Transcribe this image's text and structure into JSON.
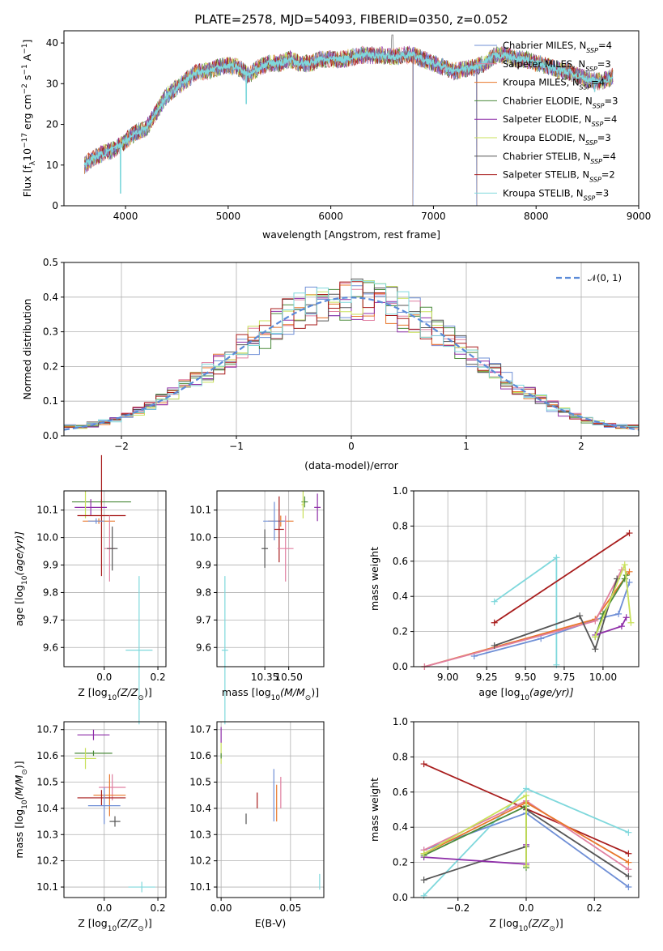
{
  "palette": {
    "chabrier_miles": "#6f8fd6",
    "salpeter_miles": "#e07fa0",
    "kroupa_miles": "#e8762a",
    "chabrier_elodie": "#4a8a3a",
    "salpeter_elodie": "#8e2ea8",
    "kroupa_elodie": "#c8e05a",
    "chabrier_stelib": "#555555",
    "salpeter_stelib": "#a81c1c",
    "kroupa_stelib": "#7fd8dc",
    "normal_curve": "#5b8bd8"
  },
  "chart_data": [
    {
      "id": "spectrum",
      "type": "line",
      "title": "PLATE=2578, MJD=54093, FIBERID=0350, z=0.052",
      "xlabel": "wavelength [Angstrom, rest frame]",
      "ylabel": "Flux [f",
      "ylabel_parts": [
        "Flux [f",
        "λ",
        "10",
        "−17",
        " erg cm",
        "−2",
        " s",
        "−1",
        " A",
        "−1",
        "]"
      ],
      "xlim": [
        3400,
        9000
      ],
      "ylim": [
        0,
        43
      ],
      "xticks": [
        "4000",
        "5000",
        "6000",
        "7000",
        "8000",
        "9000"
      ],
      "yticks": [
        "0",
        "10",
        "20",
        "30",
        "40"
      ],
      "legend_position": "top-right",
      "legend": [
        {
          "model": "Chabrier MILES, N",
          "sub": "SSP",
          "count": "=4"
        },
        {
          "model": "Salpeter MILES, N",
          "sub": "SSP",
          "count": "=3"
        },
        {
          "model": "Kroupa MILES, N",
          "sub": "SSP",
          "count": "=4"
        },
        {
          "model": "Chabrier ELODIE, N",
          "sub": "SSP",
          "count": "=3"
        },
        {
          "model": "Salpeter ELODIE, N",
          "sub": "SSP",
          "count": "=4"
        },
        {
          "model": "Kroupa ELODIE, N",
          "sub": "SSP",
          "count": "=3"
        },
        {
          "model": "Chabrier STELIB, N",
          "sub": "SSP",
          "count": "=4"
        },
        {
          "model": "Salpeter STELIB, N",
          "sub": "SSP",
          "count": "=2"
        },
        {
          "model": "Kroupa STELIB, N",
          "sub": "SSP",
          "count": "=3"
        }
      ],
      "continuum_x": [
        3600,
        3700,
        3800,
        3900,
        4000,
        4100,
        4200,
        4300,
        4400,
        4500,
        4600,
        4700,
        4800,
        4900,
        5000,
        5100,
        5200,
        5300,
        5400,
        5500,
        5600,
        5700,
        5800,
        5900,
        6000,
        6100,
        6200,
        6300,
        6400,
        6500,
        6600,
        6700,
        6800,
        6900,
        7000,
        7100,
        7200,
        7300,
        7400,
        7500,
        7600,
        7700,
        7800,
        7900,
        8000,
        8100,
        8200,
        8300,
        8400,
        8500,
        8600,
        8700,
        8750
      ],
      "continuum_y": [
        10,
        12,
        13,
        14,
        16,
        18,
        19,
        23,
        27,
        29,
        31,
        33,
        33,
        34,
        34.5,
        34,
        32,
        34,
        35,
        35,
        36,
        35,
        35,
        36,
        36,
        36,
        36.5,
        37,
        37,
        37,
        36.5,
        37,
        37,
        36,
        35,
        34,
        33,
        33.5,
        34,
        35,
        37,
        37,
        36,
        36,
        35,
        34.5,
        33.5,
        33,
        32,
        31,
        30.5,
        31,
        32
      ],
      "dips": [
        [
          3950,
          3
        ],
        [
          5175,
          25
        ],
        [
          6800,
          0
        ],
        [
          7420,
          0
        ],
        [
          8570,
          28
        ]
      ]
    },
    {
      "id": "residuals",
      "type": "histogram",
      "xlabel": "(data-model)/error",
      "ylabel": "Normed distribution",
      "xlim": [
        -2.5,
        2.5
      ],
      "ylim": [
        0,
        0.5
      ],
      "xticks": [
        "−2",
        "−1",
        "0",
        "1",
        "2"
      ],
      "yticks": [
        "0.0",
        "0.1",
        "0.2",
        "0.3",
        "0.4",
        "0.5"
      ],
      "bin_width": 0.1,
      "legend_position": "top-right",
      "legend_label": "𝒩(0, 1)",
      "grid": true
    },
    {
      "id": "age_vs_z",
      "type": "errorbar",
      "xlabel": "Z [log",
      "xlabel_parts": [
        "Z [log",
        "10",
        "(Z/Z",
        "⊙",
        ")]"
      ],
      "ylabel": "age  [log",
      "ylabel_parts": [
        "age  [log",
        "10",
        "(age/yr)]"
      ],
      "xlim": [
        -0.15,
        0.23
      ],
      "ylim": [
        9.53,
        10.17
      ],
      "xticks": [
        {
          "v": 0.0,
          "t": "0.0"
        },
        {
          "v": 0.2,
          "t": "0.2"
        }
      ],
      "yticks": [
        {
          "v": 9.6,
          "t": "9.6"
        },
        {
          "v": 9.7,
          "t": "9.7"
        },
        {
          "v": 9.8,
          "t": "9.8"
        },
        {
          "v": 9.9,
          "t": "9.9"
        },
        {
          "v": 10.0,
          "t": "10.0"
        },
        {
          "v": 10.1,
          "t": "10.1"
        }
      ],
      "points": [
        {
          "c": "chabrier_elodie",
          "x": -0.01,
          "xe": 0.11,
          "y": 10.13,
          "ye": 0.01
        },
        {
          "c": "salpeter_elodie",
          "x": -0.05,
          "xe": 0.06,
          "y": 10.11,
          "ye": 0.03
        },
        {
          "c": "kroupa_elodie",
          "x": -0.07,
          "xe": 0.0,
          "y": 10.12,
          "ye": 0.05
        },
        {
          "c": "salpeter_stelib",
          "x": -0.01,
          "xe": 0.09,
          "y": 10.08,
          "ye": 0.22
        },
        {
          "c": "kroupa_miles",
          "x": -0.02,
          "xe": 0.06,
          "y": 10.06,
          "ye": 0.01
        },
        {
          "c": "chabrier_miles",
          "x": -0.03,
          "xe": 0.03,
          "y": 10.06,
          "ye": 0.01
        },
        {
          "c": "salpeter_miles",
          "x": 0.02,
          "xe": 0.02,
          "y": 9.96,
          "ye": 0.12
        },
        {
          "c": "chabrier_stelib",
          "x": 0.03,
          "xe": 0.02,
          "y": 9.96,
          "ye": 0.08
        },
        {
          "c": "kroupa_stelib",
          "x": 0.13,
          "xe": 0.05,
          "y": 9.59,
          "ye": 0.27
        }
      ]
    },
    {
      "id": "age_vs_mass",
      "type": "errorbar",
      "xlabel": "mass [log",
      "xlabel_parts": [
        "mass [log",
        "10",
        "(M/M",
        "⊙",
        ")]"
      ],
      "ylabel": "",
      "xlim": [
        10.05,
        10.72
      ],
      "ylim": [
        9.53,
        10.17
      ],
      "xticks": [
        {
          "v": 10.35,
          "t": "10.35"
        },
        {
          "v": 10.5,
          "t": "10.50"
        }
      ],
      "yticks": [
        {
          "v": 9.6,
          "t": "9.6"
        },
        {
          "v": 9.7,
          "t": "9.7"
        },
        {
          "v": 9.8,
          "t": "9.8"
        },
        {
          "v": 9.9,
          "t": "9.9"
        },
        {
          "v": 10.0,
          "t": "10.0"
        },
        {
          "v": 10.1,
          "t": "10.1"
        }
      ],
      "points": [
        {
          "c": "chabrier_elodie",
          "x": 10.6,
          "xe": 0.02,
          "y": 10.13,
          "ye": 0.02
        },
        {
          "c": "kroupa_elodie",
          "x": 10.59,
          "xe": 0.01,
          "y": 10.12,
          "ye": 0.05
        },
        {
          "c": "salpeter_elodie",
          "x": 10.68,
          "xe": 0.02,
          "y": 10.11,
          "ye": 0.05
        },
        {
          "c": "kroupa_miles",
          "x": 10.45,
          "xe": 0.08,
          "y": 10.06,
          "ye": 0.02
        },
        {
          "c": "chabrier_miles",
          "x": 10.41,
          "xe": 0.07,
          "y": 10.06,
          "ye": 0.07
        },
        {
          "c": "salpeter_stelib",
          "x": 10.44,
          "xe": 0.03,
          "y": 10.03,
          "ye": 0.12
        },
        {
          "c": "salpeter_miles",
          "x": 10.48,
          "xe": 0.05,
          "y": 9.96,
          "ye": 0.12
        },
        {
          "c": "chabrier_stelib",
          "x": 10.35,
          "xe": 0.02,
          "y": 9.96,
          "ye": 0.07
        },
        {
          "c": "kroupa_stelib",
          "x": 10.1,
          "xe": 0.02,
          "y": 9.59,
          "ye": 0.27
        }
      ]
    },
    {
      "id": "weight_vs_age",
      "type": "line",
      "xlabel": "age  [log",
      "xlabel_parts": [
        "age  [log",
        "10",
        "(age/yr)]"
      ],
      "ylabel": "mass weight",
      "xlim": [
        8.78,
        10.23
      ],
      "ylim": [
        0,
        1
      ],
      "xticks": [
        {
          "v": 9.0,
          "t": "9.00"
        },
        {
          "v": 9.25,
          "t": "9.25"
        },
        {
          "v": 9.5,
          "t": "9.50"
        },
        {
          "v": 9.75,
          "t": "9.75"
        },
        {
          "v": 10.0,
          "t": "10.00"
        }
      ],
      "yticks": [
        {
          "v": 0,
          "t": "0.0"
        },
        {
          "v": 0.2,
          "t": "0.2"
        },
        {
          "v": 0.4,
          "t": "0.4"
        },
        {
          "v": 0.6,
          "t": "0.6"
        },
        {
          "v": 0.8,
          "t": "0.8"
        },
        {
          "v": 1.0,
          "t": "1.0"
        }
      ],
      "series": [
        {
          "c": "kroupa_stelib",
          "x": [
            9.3,
            9.7,
            9.7,
            9.7
          ],
          "y": [
            0.37,
            0.62,
            0.62,
            0.01
          ]
        },
        {
          "c": "salpeter_stelib",
          "x": [
            9.3,
            10.17
          ],
          "y": [
            0.25,
            0.76
          ]
        },
        {
          "c": "chabrier_miles",
          "x": [
            9.17,
            9.6,
            10.0,
            10.1,
            10.17
          ],
          "y": [
            0.06,
            0.16,
            0.28,
            0.3,
            0.48
          ]
        },
        {
          "c": "kroupa_miles",
          "x": [
            8.85,
            9.95,
            10.17
          ],
          "y": [
            0.0,
            0.27,
            0.54
          ]
        },
        {
          "c": "salpeter_miles",
          "x": [
            8.85,
            9.95,
            10.12
          ],
          "y": [
            0.0,
            0.26,
            0.55
          ]
        },
        {
          "c": "chabrier_stelib",
          "x": [
            9.3,
            9.85,
            9.95,
            10.09
          ],
          "y": [
            0.12,
            0.29,
            0.1,
            0.5
          ]
        },
        {
          "c": "salpeter_elodie",
          "x": [
            9.95,
            10.12,
            10.15
          ],
          "y": [
            0.18,
            0.23,
            0.28
          ]
        },
        {
          "c": "chabrier_elodie",
          "x": [
            9.95,
            10.0,
            10.14,
            10.15
          ],
          "y": [
            0.17,
            0.3,
            0.5,
            0.52
          ]
        },
        {
          "c": "kroupa_elodie",
          "x": [
            9.95,
            10.14,
            10.18
          ],
          "y": [
            0.17,
            0.58,
            0.25
          ]
        }
      ]
    },
    {
      "id": "mass_vs_z",
      "type": "errorbar",
      "xlabel": "Z [log",
      "xlabel_parts": [
        "Z [log",
        "10",
        "(Z/Z",
        "⊙",
        ")]"
      ],
      "ylabel": "mass [log",
      "ylabel_parts": [
        "mass [log",
        "10",
        "(M/M",
        "⊙",
        ")]"
      ],
      "xlim": [
        -0.15,
        0.23
      ],
      "ylim": [
        10.06,
        10.73
      ],
      "xticks": [
        {
          "v": 0.0,
          "t": "0.0"
        },
        {
          "v": 0.2,
          "t": "0.2"
        }
      ],
      "yticks": [
        {
          "v": 10.1,
          "t": "10.1"
        },
        {
          "v": 10.2,
          "t": "10.2"
        },
        {
          "v": 10.3,
          "t": "10.3"
        },
        {
          "v": 10.4,
          "t": "10.4"
        },
        {
          "v": 10.5,
          "t": "10.5"
        },
        {
          "v": 10.6,
          "t": "10.6"
        },
        {
          "v": 10.7,
          "t": "10.7"
        }
      ],
      "points": [
        {
          "c": "salpeter_elodie",
          "x": -0.04,
          "xe": 0.06,
          "y": 10.68,
          "ye": 0.02
        },
        {
          "c": "chabrier_elodie",
          "x": -0.04,
          "xe": 0.07,
          "y": 10.61,
          "ye": 0.01
        },
        {
          "c": "kroupa_elodie",
          "x": -0.07,
          "xe": 0.04,
          "y": 10.59,
          "ye": 0.04
        },
        {
          "c": "salpeter_miles",
          "x": 0.03,
          "xe": 0.05,
          "y": 10.48,
          "ye": 0.05
        },
        {
          "c": "kroupa_miles",
          "x": 0.02,
          "xe": 0.06,
          "y": 10.45,
          "ye": 0.08
        },
        {
          "c": "salpeter_stelib",
          "x": -0.01,
          "xe": 0.09,
          "y": 10.44,
          "ye": 0.03
        },
        {
          "c": "chabrier_miles",
          "x": 0.0,
          "xe": 0.06,
          "y": 10.41,
          "ye": 0.07
        },
        {
          "c": "chabrier_stelib",
          "x": 0.04,
          "xe": 0.02,
          "y": 10.35,
          "ye": 0.02
        },
        {
          "c": "kroupa_stelib",
          "x": 0.14,
          "xe": 0.05,
          "y": 10.1,
          "ye": 0.02
        }
      ]
    },
    {
      "id": "mass_vs_ebv",
      "type": "errorbar",
      "xlabel": "E(B-V)",
      "ylabel": "",
      "xlim": [
        -0.003,
        0.074
      ],
      "ylim": [
        10.06,
        10.73
      ],
      "xticks": [
        {
          "v": 0.0,
          "t": "0.00"
        },
        {
          "v": 0.05,
          "t": "0.05"
        }
      ],
      "yticks": [
        {
          "v": 10.1,
          "t": "10.1"
        },
        {
          "v": 10.2,
          "t": "10.2"
        },
        {
          "v": 10.3,
          "t": "10.3"
        },
        {
          "v": 10.4,
          "t": "10.4"
        },
        {
          "v": 10.5,
          "t": "10.5"
        },
        {
          "v": 10.6,
          "t": "10.6"
        },
        {
          "v": 10.7,
          "t": "10.7"
        }
      ],
      "points": [
        {
          "c": "salpeter_elodie",
          "x": 0.0,
          "xe": 0,
          "y": 10.68,
          "ye": 0.03
        },
        {
          "c": "kroupa_elodie",
          "x": 0.0,
          "xe": 0,
          "y": 10.61,
          "ye": 0.04
        },
        {
          "c": "chabrier_elodie",
          "x": 0.0,
          "xe": 0,
          "y": 10.6,
          "ye": 0.01
        },
        {
          "c": "chabrier_miles",
          "x": 0.038,
          "xe": 0,
          "y": 10.45,
          "ye": 0.1
        },
        {
          "c": "salpeter_miles",
          "x": 0.043,
          "xe": 0,
          "y": 10.46,
          "ye": 0.06
        },
        {
          "c": "kroupa_miles",
          "x": 0.04,
          "xe": 0,
          "y": 10.42,
          "ye": 0.07
        },
        {
          "c": "salpeter_stelib",
          "x": 0.026,
          "xe": 0,
          "y": 10.43,
          "ye": 0.03
        },
        {
          "c": "chabrier_stelib",
          "x": 0.018,
          "xe": 0,
          "y": 10.36,
          "ye": 0.02
        },
        {
          "c": "kroupa_stelib",
          "x": 0.071,
          "xe": 0,
          "y": 10.12,
          "ye": 0.03
        }
      ]
    },
    {
      "id": "weight_vs_z",
      "type": "line",
      "xlabel": "Z [log",
      "xlabel_parts": [
        "Z [log",
        "10",
        "(Z/Z",
        "⊙",
        ")]"
      ],
      "ylabel": "mass weight",
      "xlim": [
        -0.33,
        0.33
      ],
      "ylim": [
        0,
        1
      ],
      "xticks": [
        {
          "v": -0.2,
          "t": "−0.2"
        },
        {
          "v": 0.0,
          "t": "0.0"
        },
        {
          "v": 0.2,
          "t": "0.2"
        }
      ],
      "yticks": [
        {
          "v": 0,
          "t": "0.0"
        },
        {
          "v": 0.2,
          "t": "0.2"
        },
        {
          "v": 0.4,
          "t": "0.4"
        },
        {
          "v": 0.6,
          "t": "0.6"
        },
        {
          "v": 0.8,
          "t": "0.8"
        },
        {
          "v": 1.0,
          "t": "1.0"
        }
      ],
      "series": [
        {
          "c": "salpeter_stelib",
          "x": [
            -0.3,
            0.3
          ],
          "y": [
            0.76,
            0.25
          ]
        },
        {
          "c": "kroupa_stelib",
          "x": [
            -0.3,
            0.0,
            0.3
          ],
          "y": [
            0.01,
            0.62,
            0.37
          ]
        },
        {
          "c": "chabrier_miles",
          "x": [
            -0.3,
            0.0,
            0.3
          ],
          "y": [
            0.27,
            0.48,
            0.06
          ]
        },
        {
          "c": "salpeter_miles",
          "x": [
            -0.3,
            0.0,
            0.3
          ],
          "y": [
            0.27,
            0.55,
            0.16
          ]
        },
        {
          "c": "kroupa_miles",
          "x": [
            -0.3,
            0.0,
            0.3
          ],
          "y": [
            0.25,
            0.54,
            0.2
          ]
        },
        {
          "c": "chabrier_stelib",
          "x": [
            -0.3,
            0.0,
            0.0,
            0.0,
            0.3
          ],
          "y": [
            0.1,
            0.29,
            0.5,
            0.5,
            0.12
          ]
        },
        {
          "c": "salpeter_elodie",
          "x": [
            -0.3,
            0.0,
            0.0
          ],
          "y": [
            0.23,
            0.19,
            0.3
          ]
        },
        {
          "c": "chabrier_elodie",
          "x": [
            -0.3,
            0.0,
            0.0
          ],
          "y": [
            0.24,
            0.52,
            0.17
          ]
        },
        {
          "c": "kroupa_elodie",
          "x": [
            -0.3,
            0.0,
            0.0
          ],
          "y": [
            0.25,
            0.58,
            0.18
          ]
        }
      ]
    }
  ]
}
